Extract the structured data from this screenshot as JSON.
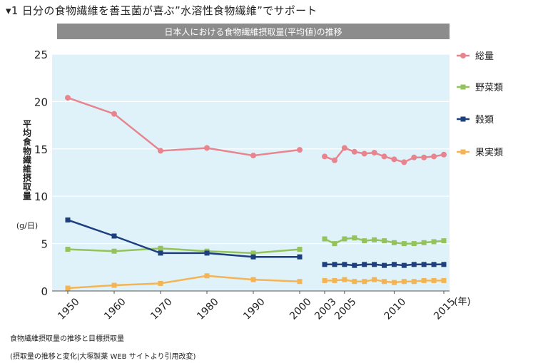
{
  "heading": "▾1 日分の食物繊維を善玉菌が喜ぶ”水溶性食物繊維”でサポート",
  "notes": {
    "line1": "食物繊維摂取量の推移と目標摂取量",
    "line2": "(摂取量の推移と変化|大塚製薬 WEB サイトより引用改変)"
  },
  "colors": {
    "banner_bg": "#8c8c8c",
    "plot_bg": "#dff2fa",
    "total": "#e8848e",
    "vegetables": "#93c35a",
    "grains": "#1e3f7d",
    "fruits": "#f5b453"
  },
  "chart_data": {
    "type": "line",
    "title": "日本人における食物繊維摂取量(平均値)の推移",
    "ylabel": "平均食物繊維摂取量",
    "yunit": "(g/日)",
    "xunit": "(年)",
    "ylim": [
      0,
      25
    ],
    "yticks": [
      0,
      5,
      10,
      15,
      20,
      25
    ],
    "grid": true,
    "legend_position": "right",
    "x_ticks_left": [
      "1950",
      "1960",
      "1970",
      "1980",
      "1990",
      "2000"
    ],
    "x_ticks_right": [
      "2003",
      "2005",
      "2010",
      "2015"
    ],
    "x_left": [
      1950,
      1960,
      1970,
      1980,
      1990,
      2000
    ],
    "x_right": [
      2003,
      2004,
      2005,
      2006,
      2007,
      2008,
      2009,
      2010,
      2011,
      2012,
      2013,
      2014,
      2015
    ],
    "series": [
      {
        "name": "総量",
        "color_key": "total",
        "marker": "circle",
        "left_values": [
          20.4,
          18.7,
          14.8,
          15.1,
          14.3,
          14.9
        ],
        "right_values": [
          14.2,
          13.8,
          15.1,
          14.7,
          14.5,
          14.6,
          14.2,
          13.9,
          13.6,
          14.1,
          14.1,
          14.2,
          14.4
        ]
      },
      {
        "name": "野菜類",
        "color_key": "vegetables",
        "marker": "square",
        "left_values": [
          4.4,
          4.2,
          4.5,
          4.2,
          4.0,
          4.4
        ],
        "right_values": [
          5.5,
          5.0,
          5.5,
          5.6,
          5.3,
          5.4,
          5.3,
          5.1,
          5.0,
          5.0,
          5.1,
          5.2,
          5.3
        ]
      },
      {
        "name": "穀類",
        "color_key": "grains",
        "marker": "square",
        "left_values": [
          7.5,
          5.8,
          4.0,
          4.0,
          3.6,
          3.6
        ],
        "right_values": [
          2.8,
          2.8,
          2.8,
          2.7,
          2.8,
          2.8,
          2.7,
          2.8,
          2.7,
          2.8,
          2.8,
          2.8,
          2.8
        ]
      },
      {
        "name": "果実類",
        "color_key": "fruits",
        "marker": "square",
        "left_values": [
          0.3,
          0.6,
          0.8,
          1.6,
          1.2,
          1.0
        ],
        "right_values": [
          1.1,
          1.1,
          1.2,
          1.0,
          1.0,
          1.2,
          1.0,
          0.9,
          1.0,
          1.0,
          1.1,
          1.1,
          1.1
        ]
      }
    ]
  }
}
